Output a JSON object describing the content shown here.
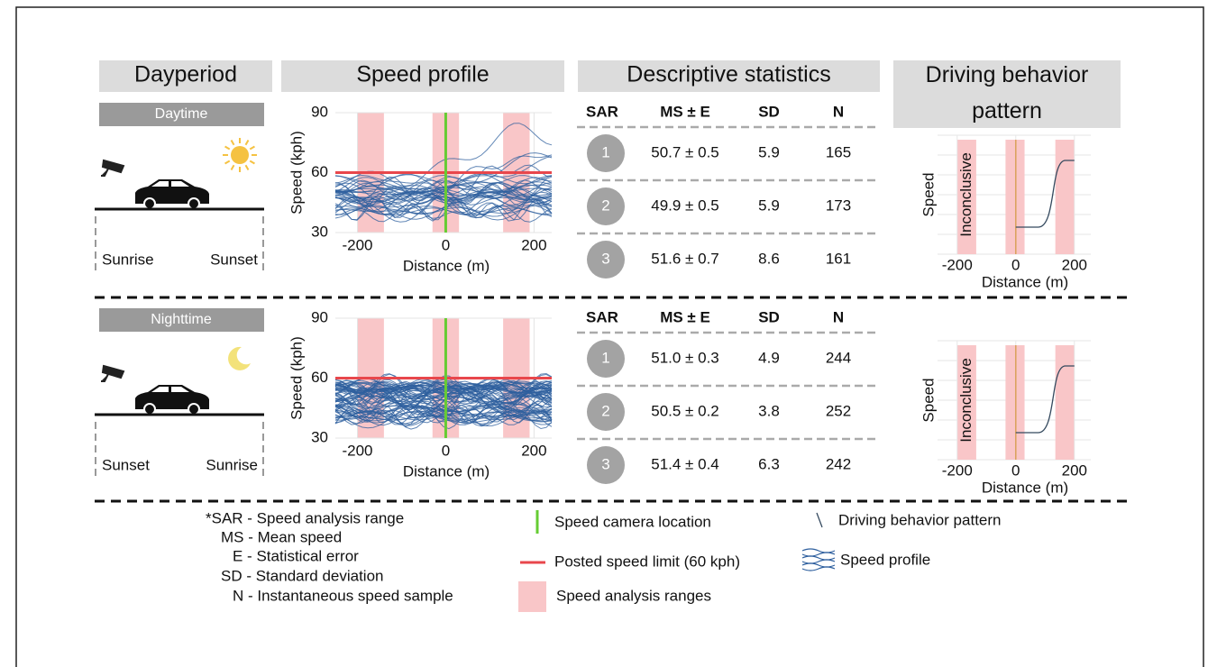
{
  "headers": [
    "Dayperiod",
    "Speed profile",
    "Descriptive statistics",
    "Driving behavior pattern"
  ],
  "profile_settings": {
    "ylabel": "Speed (kph)",
    "xlabel": "Distance (m)",
    "xlim": [
      -250,
      240
    ],
    "ylim": [
      30,
      90
    ],
    "xticks": [
      -200,
      0,
      200
    ],
    "yticks": [
      30,
      60,
      90
    ],
    "speed_limit": 60,
    "camera": 0,
    "ranges": [
      [
        -200,
        -140
      ],
      [
        -30,
        30
      ],
      [
        130,
        190
      ]
    ],
    "limit_color": "#e8474c",
    "camera_color": "#66cc33",
    "range_color": "#f9c6c8",
    "line_color": "#2e5f9e"
  },
  "pattern_settings": {
    "ylabel": "Speed",
    "xlabel": "Distance (m)",
    "label": "Inconclusive",
    "xlim": [
      -267,
      256
    ],
    "xticks": [
      -200,
      0,
      200
    ],
    "ranges": [
      [
        -200,
        -135
      ],
      [
        -35,
        30
      ],
      [
        135,
        200
      ]
    ],
    "camera": 0,
    "camera_color": "#d9a15a"
  },
  "stats_header": [
    "SAR",
    "MS ± E",
    "SD",
    "N"
  ],
  "rows": [
    {
      "period": "Daytime",
      "start": "Sunrise",
      "end": "Sunset",
      "stats": [
        [
          "1",
          "50.7 ± 0.5",
          "5.9",
          "165"
        ],
        [
          "2",
          "49.9 ± 0.5",
          "5.9",
          "173"
        ],
        [
          "3",
          "51.6 ± 0.7",
          "8.6",
          "161"
        ]
      ]
    },
    {
      "period": "Nighttime",
      "start": "Sunset",
      "end": "Sunrise",
      "stats": [
        [
          "1",
          "51.0 ± 0.3",
          "4.9",
          "244"
        ],
        [
          "2",
          "50.5 ± 0.2",
          "3.8",
          "252"
        ],
        [
          "3",
          "51.4 ± 0.4",
          "6.3",
          "242"
        ]
      ]
    }
  ],
  "legend": {
    "abbreviations": [
      "*SAR - Speed analysis range",
      "MS - Mean speed",
      "E - Statistical error",
      "SD - Standard deviation",
      "N - Instantaneous speed sample"
    ],
    "camera": "Speed camera location",
    "limit": "Posted speed limit (60 kph)",
    "ranges": "Speed analysis ranges",
    "pattern": "Driving behavior pattern",
    "profile": "Speed profile"
  }
}
